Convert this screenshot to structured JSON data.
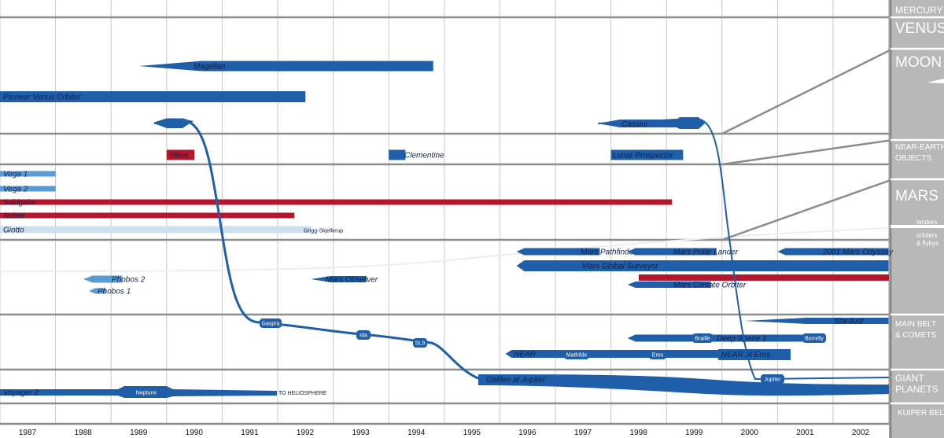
{
  "chart_data": {
    "type": "timeline",
    "x_ticks": [
      "1987",
      "1988",
      "1989",
      "1990",
      "1991",
      "1992",
      "1993",
      "1994",
      "1995",
      "1996",
      "1997",
      "1998",
      "1999",
      "2000",
      "2001",
      "2002"
    ],
    "x_range": [
      1987,
      2003
    ],
    "zones": [
      {
        "label": "MERCURY",
        "size": "med"
      },
      {
        "label": "VENUS",
        "size": "big"
      },
      {
        "label": "MOON",
        "size": "big"
      },
      {
        "label": "NEAR-EARTH OBJECTS",
        "lines": [
          "NEAR-EARTH",
          "OBJECTS"
        ],
        "size": "sm"
      },
      {
        "label": "MARS",
        "size": "big"
      },
      {
        "label": "landers",
        "size": "xs"
      },
      {
        "label": "orbiters & flybys",
        "lines": [
          "orbiters",
          "& flybys"
        ],
        "size": "xs"
      },
      {
        "label": "MAIN BELT & COMETS",
        "lines": [
          "MAIN BELT",
          "& COMETS"
        ],
        "size": "sm"
      },
      {
        "label": "GIANT PLANETS",
        "lines": [
          "GIANT",
          "PLANETS"
        ],
        "size": "med"
      },
      {
        "label": "KUIPER BELT",
        "size": "sm"
      }
    ],
    "missions": [
      {
        "name": "Magellan",
        "start": 1989.5,
        "end": 1994.8,
        "zone": "VENUS",
        "color": "#1f5ea8"
      },
      {
        "name": "Pioneer Venus Orbiter",
        "start": 1987.0,
        "end": 1992.5,
        "zone": "VENUS",
        "color": "#1f5ea8"
      },
      {
        "name": "Galileo at Jupiter",
        "start": 1989.8,
        "end": 2003.0,
        "zone": "GIANT PLANETS",
        "color": "#1f5ea8"
      },
      {
        "name": "Cassini",
        "start": 1997.8,
        "end": 2003.0,
        "zone": "GIANT PLANETS",
        "color": "#1f5ea8"
      },
      {
        "name": "Hiten",
        "start": 1990.0,
        "end": 1990.5,
        "zone": "MOON",
        "color": "#b5162b"
      },
      {
        "name": "Clementine",
        "start": 1994.0,
        "end": 1994.3,
        "zone": "MOON",
        "color": "#1f5ea8"
      },
      {
        "name": "Lunar Prospector",
        "start": 1998.0,
        "end": 1999.3,
        "zone": "MOON",
        "color": "#1f5ea8"
      },
      {
        "name": "Vega 1",
        "start": 1987.0,
        "end": 1988.0,
        "zone": "MAIN BELT & COMETS",
        "color": "#5b9bd5"
      },
      {
        "name": "Vega 2",
        "start": 1987.0,
        "end": 1988.0,
        "zone": "MAIN BELT & COMETS",
        "color": "#5b9bd5"
      },
      {
        "name": "Sakigake",
        "start": 1987.0,
        "end": 1999.1,
        "zone": "MAIN BELT & COMETS",
        "color": "#b5162b"
      },
      {
        "name": "Suisei",
        "start": 1987.0,
        "end": 1992.3,
        "zone": "MAIN BELT & COMETS",
        "color": "#b5162b"
      },
      {
        "name": "Giotto",
        "start": 1987.0,
        "end": 1992.6,
        "zone": "MAIN BELT & COMETS",
        "color": "#cde0ee"
      },
      {
        "name": "Mars Pathfinder",
        "start": 1996.3,
        "end": 1997.8,
        "zone": "MARS",
        "color": "#1f5ea8"
      },
      {
        "name": "Mars Polar Lander",
        "start": 1998.3,
        "end": 1999.9,
        "zone": "MARS",
        "color": "#1f5ea8"
      },
      {
        "name": "2001 Mars Odyssey",
        "start": 2001.0,
        "end": 2003.0,
        "zone": "MARS",
        "color": "#1f5ea8"
      },
      {
        "name": "Mars Global Surveyor",
        "start": 1996.3,
        "end": 2003.0,
        "zone": "MARS",
        "color": "#1f5ea8"
      },
      {
        "name": "Mars Climate Orbiter",
        "start": 1998.3,
        "end": 1999.8,
        "zone": "MARS",
        "color": "#1f5ea8"
      },
      {
        "name": "Phobos 2",
        "start": 1988.5,
        "end": 1989.2,
        "zone": "MARS",
        "color": "#5b9bd5"
      },
      {
        "name": "Phobos 1",
        "start": 1988.6,
        "end": 1988.9,
        "zone": "MARS",
        "color": "#5b9bd5"
      },
      {
        "name": "Mars Observer",
        "start": 1992.6,
        "end": 1993.6,
        "zone": "MARS",
        "color": "#1f5ea8"
      },
      {
        "name": "Stardust",
        "start": 2000.4,
        "end": 2003.0,
        "zone": "MAIN BELT & COMETS",
        "color": "#1f5ea8"
      },
      {
        "name": "Deep Space 1",
        "start": 1998.3,
        "end": 2001.5,
        "zone": "MAIN BELT & COMETS",
        "color": "#1f5ea8"
      },
      {
        "name": "NEAR",
        "start": 1996.1,
        "end": 2000.7,
        "zone": "MAIN BELT & COMETS",
        "color": "#1f5ea8"
      },
      {
        "name": "NEAR at Eros",
        "start": 2000.0,
        "end": 2001.1,
        "zone": "NEAR-EARTH OBJECTS",
        "color": "#1f5ea8"
      },
      {
        "name": "Voyager 2",
        "start": 1987.0,
        "end": 1991.5,
        "zone": "GIANT PLANETS",
        "color": "#1f5ea8"
      }
    ],
    "event_tags": [
      "Gaspra",
      "Ida",
      "SL9",
      "Mathilde",
      "Eros",
      "Braille",
      "Borrelly",
      "Jupiter",
      "Neptune"
    ],
    "annotations": [
      "Grigg-Skjellerup",
      "TO HELIOSPHERE"
    ],
    "colors": {
      "blue": "#1f5ea8",
      "light_blue": "#5b9bd5",
      "pale_blue": "#cde0ee",
      "red": "#b5162b",
      "grid": "#c8c8c8",
      "zone_line": "#8c8c8c",
      "side_panel": "#b8b8b8"
    }
  }
}
